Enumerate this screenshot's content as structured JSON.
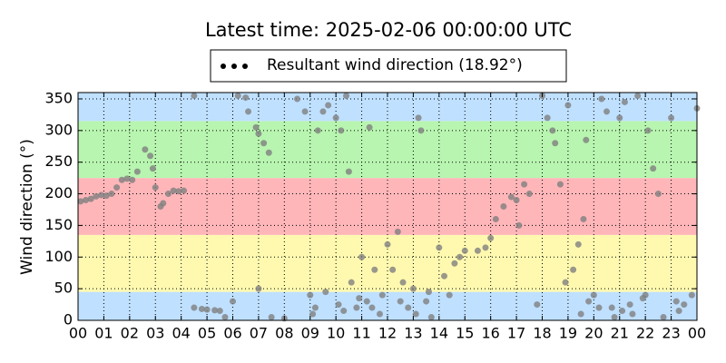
{
  "chart_data": {
    "type": "scatter",
    "title": "Latest time: 2025-02-06 00:00:00 UTC",
    "y_label": "Wind direction (°)",
    "series": [
      {
        "name": "Resultant wind direction (18.92°)",
        "color": "#808080",
        "x": [
          0.1,
          0.3,
          0.5,
          0.7,
          0.9,
          1.1,
          1.3,
          1.5,
          1.7,
          1.9,
          2.1,
          2.3,
          2.6,
          2.8,
          2.9,
          3.0,
          3.2,
          3.3,
          3.5,
          3.7,
          3.9,
          4.1,
          4.5,
          4.5,
          4.8,
          5.0,
          5.3,
          5.5,
          5.7,
          6.0,
          6.2,
          6.5,
          6.6,
          6.9,
          7.0,
          7.2,
          7.4,
          7.0,
          7.5,
          8.0,
          8.5,
          8.8,
          9.0,
          9.2,
          9.3,
          9.5,
          9.7,
          10.0,
          10.2,
          10.4,
          10.5,
          10.6,
          10.8,
          11.0,
          11.2,
          11.3,
          11.5,
          11.7,
          12.0,
          12.2,
          12.4,
          12.6,
          12.8,
          13.0,
          13.2,
          13.3,
          13.5,
          13.7,
          14.0,
          14.2,
          14.4,
          14.6,
          14.8,
          15.0,
          15.5,
          15.8,
          16.0,
          16.2,
          16.5,
          16.8,
          17.0,
          17.1,
          17.3,
          17.5,
          17.8,
          18.0,
          18.2,
          18.4,
          18.5,
          18.7,
          18.9,
          19.0,
          19.2,
          19.4,
          19.6,
          19.7,
          19.8,
          20.0,
          20.3,
          20.5,
          20.7,
          21.0,
          21.2,
          21.5,
          21.7,
          22.0,
          22.1,
          22.3,
          22.5,
          22.7,
          23.0,
          23.2,
          23.5,
          23.8,
          24.0,
          9.1,
          9.6,
          10.1,
          10.3,
          10.9,
          11.4,
          11.8,
          12.5,
          13.1,
          13.6,
          19.5,
          20.2,
          20.8,
          21.1,
          21.4,
          21.9,
          23.3
        ],
        "values": [
          188,
          190,
          192,
          196,
          198,
          197,
          200,
          210,
          222,
          224,
          222,
          235,
          270,
          260,
          240,
          210,
          180,
          185,
          200,
          205,
          204,
          205,
          355,
          20,
          18,
          17,
          16,
          15,
          5,
          30,
          355,
          352,
          330,
          305,
          295,
          280,
          265,
          50,
          5,
          3,
          350,
          330,
          40,
          20,
          300,
          330,
          340,
          320,
          300,
          355,
          235,
          60,
          20,
          100,
          30,
          305,
          80,
          10,
          120,
          80,
          140,
          60,
          20,
          50,
          320,
          300,
          30,
          5,
          115,
          70,
          40,
          90,
          100,
          110,
          110,
          115,
          130,
          160,
          180,
          195,
          190,
          150,
          215,
          200,
          25,
          355,
          320,
          300,
          280,
          215,
          60,
          340,
          80,
          120,
          160,
          285,
          30,
          40,
          350,
          330,
          20,
          320,
          345,
          10,
          355,
          40,
          300,
          240,
          200,
          5,
          320,
          30,
          25,
          40,
          335,
          10,
          45,
          25,
          15,
          35,
          20,
          40,
          30,
          10,
          45,
          10,
          20,
          5,
          15,
          25,
          35,
          15
        ]
      }
    ],
    "xlim": [
      0,
      24
    ],
    "xticks": [
      {
        "value": 0,
        "label": "00"
      },
      {
        "value": 1,
        "label": "01"
      },
      {
        "value": 2,
        "label": "02"
      },
      {
        "value": 3,
        "label": "03"
      },
      {
        "value": 4,
        "label": "04"
      },
      {
        "value": 5,
        "label": "05"
      },
      {
        "value": 6,
        "label": "06"
      },
      {
        "value": 7,
        "label": "07"
      },
      {
        "value": 8,
        "label": "08"
      },
      {
        "value": 9,
        "label": "09"
      },
      {
        "value": 10,
        "label": "10"
      },
      {
        "value": 11,
        "label": "11"
      },
      {
        "value": 12,
        "label": "12"
      },
      {
        "value": 13,
        "label": "13"
      },
      {
        "value": 14,
        "label": "14"
      },
      {
        "value": 15,
        "label": "15"
      },
      {
        "value": 16,
        "label": "16"
      },
      {
        "value": 17,
        "label": "17"
      },
      {
        "value": 18,
        "label": "18"
      },
      {
        "value": 19,
        "label": "19"
      },
      {
        "value": 20,
        "label": "20"
      },
      {
        "value": 21,
        "label": "21"
      },
      {
        "value": 22,
        "label": "22"
      },
      {
        "value": 23,
        "label": "23"
      },
      {
        "value": 24,
        "label": "00"
      }
    ],
    "ylim": [
      0,
      360
    ],
    "yticks": [
      0,
      50,
      100,
      150,
      200,
      250,
      300,
      350
    ],
    "grid": true,
    "bands": [
      {
        "from": 0,
        "to": 45,
        "color": "#bfe0ff"
      },
      {
        "from": 45,
        "to": 135,
        "color": "#fff9b0"
      },
      {
        "from": 135,
        "to": 225,
        "color": "#ffb6b9"
      },
      {
        "from": 225,
        "to": 315,
        "color": "#b8f5b0"
      },
      {
        "from": 315,
        "to": 360,
        "color": "#bfe0ff"
      }
    ]
  }
}
